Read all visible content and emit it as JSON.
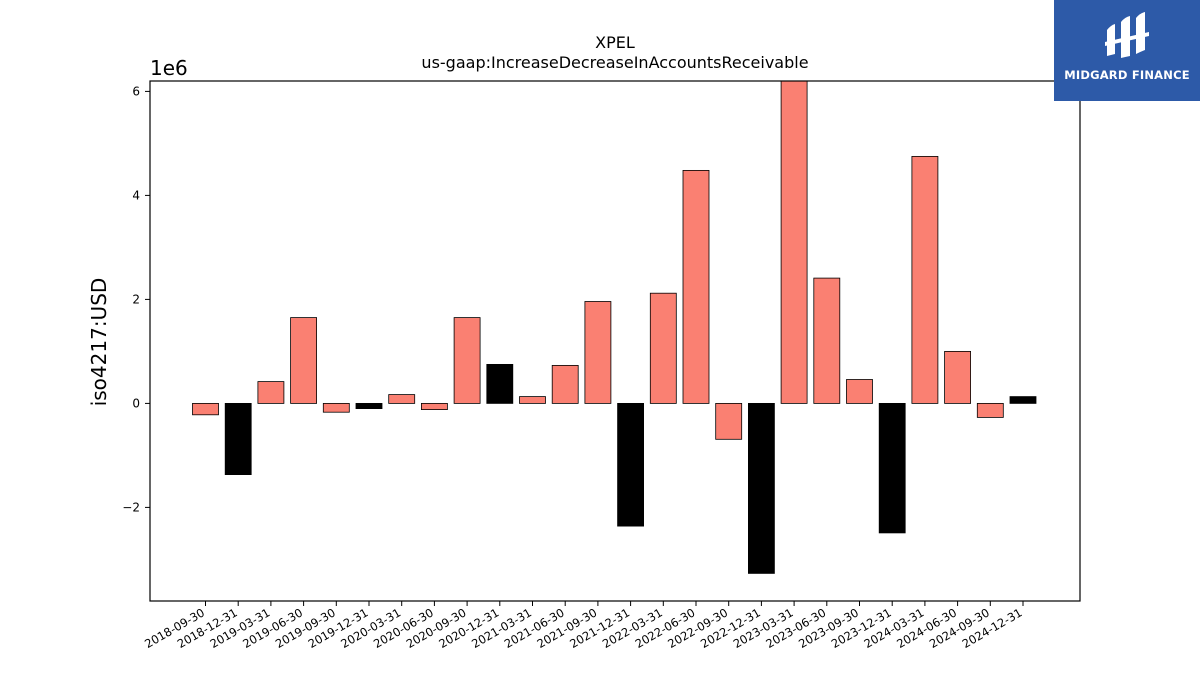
{
  "brand": {
    "name": "MIDGARD FINANCE",
    "color": "#2d5aa8"
  },
  "chart_data": {
    "type": "bar",
    "title": "XPEL",
    "subtitle": "us-gaap:IncreaseDecreaseInAccountsReceivable",
    "xlabel": "",
    "ylabel": "iso4217:USD",
    "scale_label": "1e6",
    "scale_factor": 1000000,
    "ylim": [
      -3.8,
      6.2
    ],
    "yticks": [
      -2,
      0,
      2,
      4,
      6
    ],
    "ytick_labels": [
      "−2",
      "0",
      "2",
      "4",
      "6"
    ],
    "grid": false,
    "legend": "none",
    "colors": {
      "default": "#fa8072",
      "year_end": "#000000"
    },
    "categories": [
      "2018-09-30",
      "2018-12-31",
      "2019-03-31",
      "2019-06-30",
      "2019-09-30",
      "2019-12-31",
      "2020-03-31",
      "2020-06-30",
      "2020-09-30",
      "2020-12-31",
      "2021-03-31",
      "2021-06-30",
      "2021-09-30",
      "2021-12-31",
      "2022-03-31",
      "2022-06-30",
      "2022-09-30",
      "2022-12-31",
      "2023-03-31",
      "2023-06-30",
      "2023-09-30",
      "2023-12-31",
      "2024-03-31",
      "2024-06-30",
      "2024-09-30",
      "2024-12-31"
    ],
    "values": [
      -0.22,
      -1.37,
      0.42,
      1.65,
      -0.17,
      -0.1,
      0.17,
      -0.12,
      1.65,
      0.75,
      0.13,
      0.73,
      1.96,
      -2.36,
      2.12,
      4.48,
      -0.69,
      -3.27,
      6.3,
      2.41,
      0.46,
      -2.49,
      4.75,
      1.0,
      -0.27,
      0.13
    ]
  }
}
